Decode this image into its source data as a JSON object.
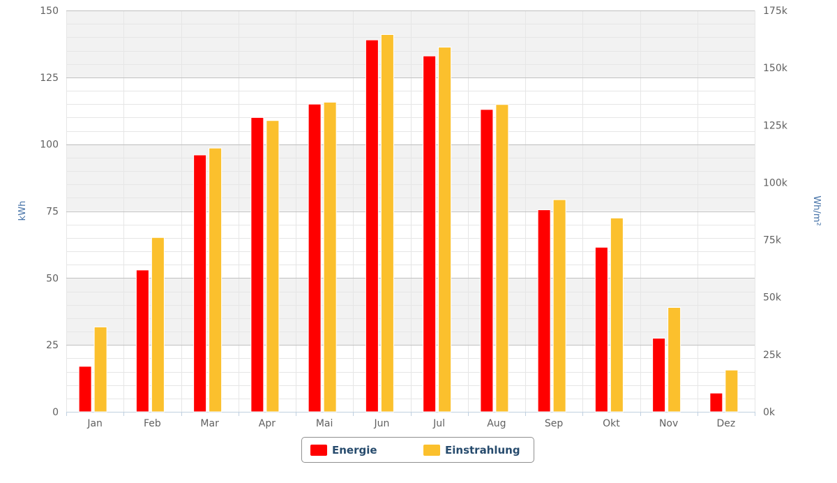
{
  "chart_data": {
    "type": "bar",
    "categories": [
      "Jan",
      "Feb",
      "Mar",
      "Apr",
      "Mai",
      "Jun",
      "Jul",
      "Aug",
      "Sep",
      "Okt",
      "Nov",
      "Dez"
    ],
    "series": [
      {
        "name": "Energie",
        "color": "#ff0000",
        "axis": "left",
        "values": [
          17,
          53,
          96,
          110,
          115,
          139,
          133,
          113,
          75.5,
          61.5,
          27.5,
          7
        ]
      },
      {
        "name": "Einstrahlung",
        "color": "#fbc02d",
        "axis": "right",
        "values": [
          37000,
          76000,
          115000,
          127000,
          135000,
          164500,
          159000,
          134000,
          92500,
          84500,
          45500,
          18200
        ]
      }
    ],
    "y_left": {
      "label": "kWh",
      "range": [
        0,
        150
      ],
      "ticks": [
        "0",
        "25",
        "50",
        "75",
        "100",
        "125",
        "150"
      ]
    },
    "y_right": {
      "label": "Wh/m²",
      "range": [
        0,
        175000
      ],
      "ticks": [
        "0k",
        "25k",
        "50k",
        "75k",
        "100k",
        "125k",
        "150k",
        "175k"
      ]
    },
    "grid": true,
    "alternate_bands": true,
    "legend_position": "bottom-center"
  }
}
